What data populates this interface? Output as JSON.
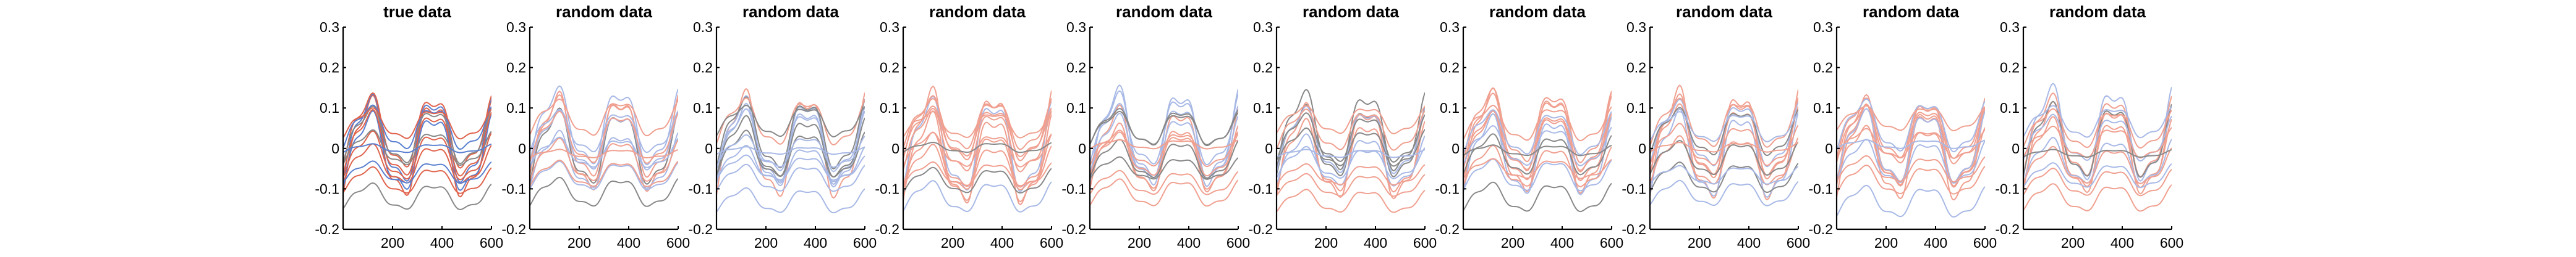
{
  "colors": {
    "red": "#e0634c",
    "red_light": "#f0a090",
    "blue": "#5a7fd0",
    "blue_light": "#a8b9e6",
    "gray": "#888888",
    "axis": "#000000"
  },
  "chart_data": [
    {
      "type": "line",
      "title": "true data",
      "xlim": [
        0,
        600
      ],
      "ylim": [
        -0.2,
        0.3
      ],
      "x_ticks": [
        "200",
        "400",
        "600"
      ],
      "y_ticks": [
        "0.3",
        "0.2",
        "0.1",
        "0",
        "-0.1",
        "-0.2"
      ],
      "grid": false
    },
    {
      "type": "line",
      "title": "random data",
      "xlim": [
        0,
        600
      ],
      "ylim": [
        -0.2,
        0.3
      ],
      "x_ticks": [
        "200",
        "400",
        "600"
      ],
      "y_ticks": [
        "0.3",
        "0.2",
        "0.1",
        "0",
        "-0.1",
        "-0.2"
      ],
      "grid": false
    },
    {
      "type": "line",
      "title": "random data",
      "xlim": [
        0,
        600
      ],
      "ylim": [
        -0.2,
        0.3
      ],
      "x_ticks": [
        "200",
        "400",
        "600"
      ],
      "y_ticks": [
        "0.3",
        "0.2",
        "0.1",
        "0",
        "-0.1",
        "-0.2"
      ],
      "grid": false
    },
    {
      "type": "line",
      "title": "random data",
      "xlim": [
        0,
        600
      ],
      "ylim": [
        -0.2,
        0.3
      ],
      "x_ticks": [
        "200",
        "400",
        "600"
      ],
      "y_ticks": [
        "0.3",
        "0.2",
        "0.1",
        "0",
        "-0.1",
        "-0.2"
      ],
      "grid": false
    },
    {
      "type": "line",
      "title": "random data",
      "xlim": [
        0,
        600
      ],
      "ylim": [
        -0.2,
        0.3
      ],
      "x_ticks": [
        "200",
        "400",
        "600"
      ],
      "y_ticks": [
        "0.3",
        "0.2",
        "0.1",
        "0",
        "-0.1",
        "-0.2"
      ],
      "grid": false
    },
    {
      "type": "line",
      "title": "random data",
      "xlim": [
        0,
        600
      ],
      "ylim": [
        -0.2,
        0.3
      ],
      "x_ticks": [
        "200",
        "400",
        "600"
      ],
      "y_ticks": [
        "0.3",
        "0.2",
        "0.1",
        "0",
        "-0.1",
        "-0.2"
      ],
      "grid": false
    },
    {
      "type": "line",
      "title": "random data",
      "xlim": [
        0,
        600
      ],
      "ylim": [
        -0.2,
        0.3
      ],
      "x_ticks": [
        "200",
        "400",
        "600"
      ],
      "y_ticks": [
        "0.3",
        "0.2",
        "0.1",
        "0",
        "-0.1",
        "-0.2"
      ],
      "grid": false
    },
    {
      "type": "line",
      "title": "random data",
      "xlim": [
        0,
        600
      ],
      "ylim": [
        -0.2,
        0.3
      ],
      "x_ticks": [
        "200",
        "400",
        "600"
      ],
      "y_ticks": [
        "0.3",
        "0.2",
        "0.1",
        "0",
        "-0.1",
        "-0.2"
      ],
      "grid": false
    },
    {
      "type": "line",
      "title": "random data",
      "xlim": [
        0,
        600
      ],
      "ylim": [
        -0.2,
        0.3
      ],
      "x_ticks": [
        "200",
        "400",
        "600"
      ],
      "y_ticks": [
        "0.3",
        "0.2",
        "0.1",
        "0",
        "-0.1",
        "-0.2"
      ],
      "grid": false
    },
    {
      "type": "line",
      "title": "random data",
      "xlim": [
        0,
        600
      ],
      "ylim": [
        -0.2,
        0.3
      ],
      "x_ticks": [
        "200",
        "400",
        "600"
      ],
      "y_ticks": [
        "0.3",
        "0.2",
        "0.1",
        "0",
        "-0.1",
        "-0.2"
      ],
      "grid": false
    }
  ],
  "waveforms": [
    {
      "offset": 0.0,
      "amp": 0.115,
      "group": "red"
    },
    {
      "offset": 0.02,
      "amp": 0.1,
      "group": "blue"
    },
    {
      "offset": 0.04,
      "amp": 0.085,
      "group": "red"
    },
    {
      "offset": -0.01,
      "amp": 0.09,
      "group": "blue"
    },
    {
      "offset": 0.01,
      "amp": 0.075,
      "group": "red"
    },
    {
      "offset": 0.03,
      "amp": 0.065,
      "group": "gray"
    },
    {
      "offset": -0.02,
      "amp": 0.055,
      "group": "red"
    },
    {
      "offset": 0.05,
      "amp": 0.05,
      "group": "blue"
    },
    {
      "offset": -0.04,
      "amp": 0.045,
      "group": "red"
    },
    {
      "offset": 0.0,
      "amp": 0.04,
      "group": "gray"
    },
    {
      "offset": -0.08,
      "amp": 0.03,
      "group": "red"
    },
    {
      "offset": -0.12,
      "amp": 0.03,
      "group": "gray"
    },
    {
      "offset": -0.06,
      "amp": 0.025,
      "group": "blue"
    },
    {
      "offset": 0.06,
      "amp": 0.035,
      "group": "red"
    },
    {
      "offset": 0.0,
      "amp": 0.01,
      "group": "blue"
    }
  ]
}
